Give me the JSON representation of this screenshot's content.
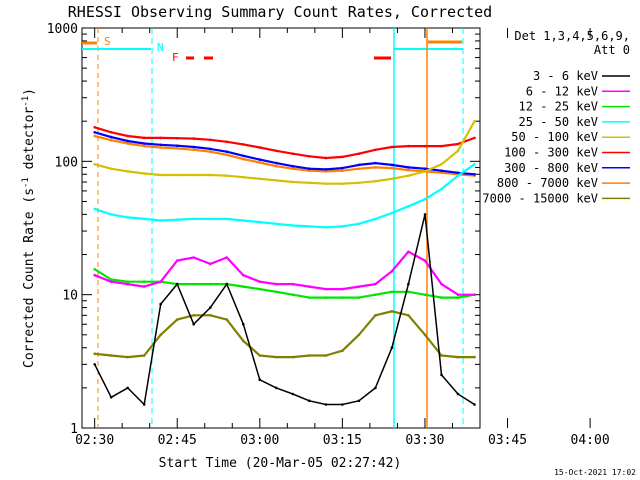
{
  "chart_data": {
    "type": "line",
    "title": "RHESSI Observing Summary Count Rates, Corrected",
    "xlabel": "Start Time (20-Mar-05 02:27:42)",
    "ylabel": "Corrected Count Rate (s",
    "ylabel_sup1": "-1",
    "ylabel_mid": " detector",
    "ylabel_sup2": "-1",
    "ylabel_end": ")",
    "y_scale": "log",
    "ylim": [
      1,
      1000
    ],
    "xlim_min": [
      147.7,
      220
    ],
    "y_ticks": [
      {
        "value": 1,
        "label": "1"
      },
      {
        "value": 10,
        "label": "10"
      },
      {
        "value": 100,
        "label": "100"
      },
      {
        "value": 1000,
        "label": "1000"
      }
    ],
    "x_ticks": [
      {
        "value": 150,
        "label": "02:30"
      },
      {
        "value": 165,
        "label": "02:45"
      },
      {
        "value": 180,
        "label": "03:00"
      },
      {
        "value": 195,
        "label": "03:15"
      },
      {
        "value": 210,
        "label": "03:30"
      },
      {
        "value": 225,
        "label": "03:45"
      },
      {
        "value": 240,
        "label": "04:00"
      }
    ],
    "legend_header": [
      "Det 1,3,4,5,6,9,",
      "Att 0"
    ],
    "legend_position": "right",
    "series": [
      {
        "name": "3 - 6 keV",
        "color": "#000000",
        "values": [
          3.0,
          1.7,
          2.0,
          1.5,
          8.5,
          12.0,
          6.0,
          8.0,
          12.0,
          6.0,
          2.3,
          2.0,
          1.8,
          1.6,
          1.5,
          1.5,
          1.6,
          2.0,
          4.0,
          12.0,
          40.0,
          2.5,
          1.8,
          1.5
        ]
      },
      {
        "name": "6 - 12 keV",
        "color": "#ff00ff",
        "values": [
          14.0,
          12.5,
          12.0,
          11.5,
          12.5,
          18.0,
          19.0,
          17.0,
          19.0,
          14.0,
          12.5,
          12.0,
          12.0,
          11.5,
          11.0,
          11.0,
          11.5,
          12.0,
          15.0,
          21.0,
          18.0,
          12.0,
          10.0,
          10.0
        ]
      },
      {
        "name": "12 - 25 keV",
        "color": "#00e600",
        "values": [
          15.5,
          13.0,
          12.5,
          12.5,
          12.5,
          12.0,
          12.0,
          12.0,
          12.0,
          11.5,
          11.0,
          10.5,
          10.0,
          9.5,
          9.5,
          9.5,
          9.5,
          10.0,
          10.5,
          10.5,
          10.0,
          9.5,
          9.5,
          10.0
        ]
      },
      {
        "name": "25 - 50 keV",
        "color": "#00ffff",
        "values": [
          44.0,
          40.0,
          38.0,
          37.0,
          36.0,
          36.5,
          37.0,
          37.0,
          37.0,
          36.0,
          35.0,
          34.0,
          33.0,
          32.5,
          32.0,
          32.5,
          34.0,
          37.0,
          41.0,
          46.0,
          52.0,
          62.0,
          78.0,
          95.0
        ]
      },
      {
        "name": "50 - 100 keV",
        "color": "#d4c000",
        "values": [
          95.0,
          88.0,
          84.0,
          81.0,
          79.0,
          79.0,
          79.0,
          79.0,
          78.0,
          76.0,
          74.0,
          72.0,
          70.0,
          69.0,
          68.0,
          68.0,
          69.0,
          71.0,
          74.0,
          78.0,
          84.0,
          95.0,
          120.0,
          200.0
        ]
      },
      {
        "name": "100 - 300 keV",
        "color": "#ff0000",
        "values": [
          180.0,
          165.0,
          155.0,
          150.0,
          150.0,
          149.0,
          148.0,
          145.0,
          140.0,
          134.0,
          127.0,
          120.0,
          114.0,
          109.0,
          106.0,
          108.0,
          114.0,
          122.0,
          128.0,
          130.0,
          130.0,
          130.0,
          135.0,
          150.0
        ]
      },
      {
        "name": "300 - 800 keV",
        "color": "#0000ff",
        "values": [
          165.0,
          152.0,
          142.0,
          136.0,
          133.0,
          131.0,
          128.0,
          124.0,
          118.0,
          110.0,
          103.0,
          97.0,
          92.0,
          88.0,
          87.0,
          89.0,
          94.0,
          97.0,
          94.0,
          90.0,
          88.0,
          85.0,
          82.0,
          80.0
        ]
      },
      {
        "name": "800 - 7000 keV",
        "color": "#ff8000",
        "values": [
          155.0,
          144.0,
          136.0,
          130.0,
          127.0,
          125.0,
          122.0,
          118.0,
          112.0,
          104.0,
          98.0,
          92.0,
          88.0,
          85.0,
          84.0,
          85.0,
          88.0,
          90.0,
          89.0,
          86.0,
          84.0,
          82.0,
          80.0,
          78.0
        ]
      },
      {
        "name": "7000 - 15000 keV",
        "color": "#808000",
        "values": [
          3.6,
          3.5,
          3.4,
          3.5,
          5.0,
          6.5,
          7.0,
          7.0,
          6.5,
          4.5,
          3.5,
          3.4,
          3.4,
          3.5,
          3.5,
          3.8,
          5.0,
          7.0,
          7.5,
          7.0,
          5.0,
          3.5,
          3.4,
          3.4
        ]
      }
    ],
    "x_minutes": [
      150,
      153,
      156,
      159,
      162,
      165,
      168,
      171,
      174,
      177,
      180,
      183,
      186,
      189,
      192,
      195,
      198,
      201,
      204,
      207,
      210,
      213,
      216,
      219
    ],
    "annotations": [
      {
        "label": "S",
        "color": "#ff8000"
      },
      {
        "label": "N",
        "color": "#00ffff"
      },
      {
        "label": "F",
        "color": "#ff0000"
      }
    ],
    "footer_date": "15-Oct-2021 17:02"
  }
}
